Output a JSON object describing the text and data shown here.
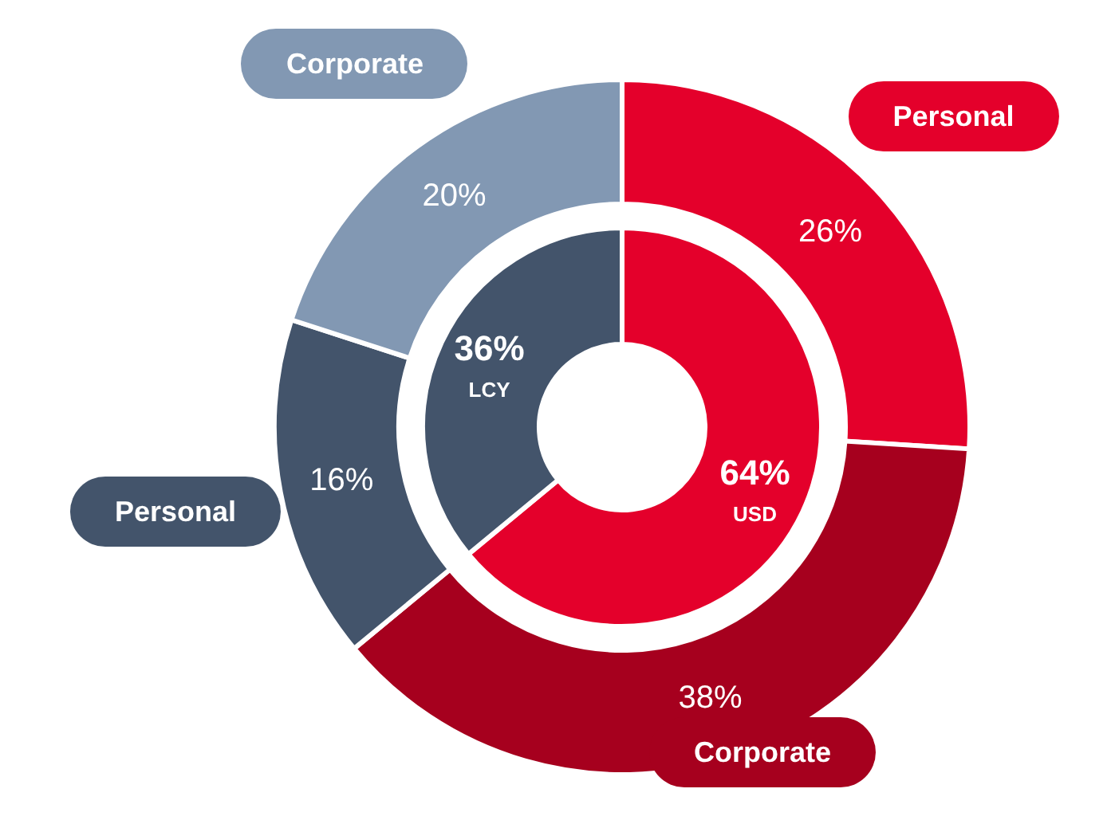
{
  "chart_data": [
    {
      "type": "donut",
      "categories": [
        "Personal",
        "Corporate",
        "Personal",
        "Corporate"
      ],
      "values": [
        26,
        38,
        16,
        20
      ],
      "colors": [
        "#e4002b",
        "#a6001e",
        "#43546b",
        "#8298b3"
      ],
      "value_labels": [
        "26%",
        "38%",
        "16%",
        "20%"
      ]
    },
    {
      "type": "donut",
      "categories": [
        "USD",
        "LCY"
      ],
      "values": [
        64,
        36
      ],
      "colors": [
        "#e4002b",
        "#43546b"
      ],
      "value_labels": [
        "64%",
        "36%"
      ]
    }
  ]
}
